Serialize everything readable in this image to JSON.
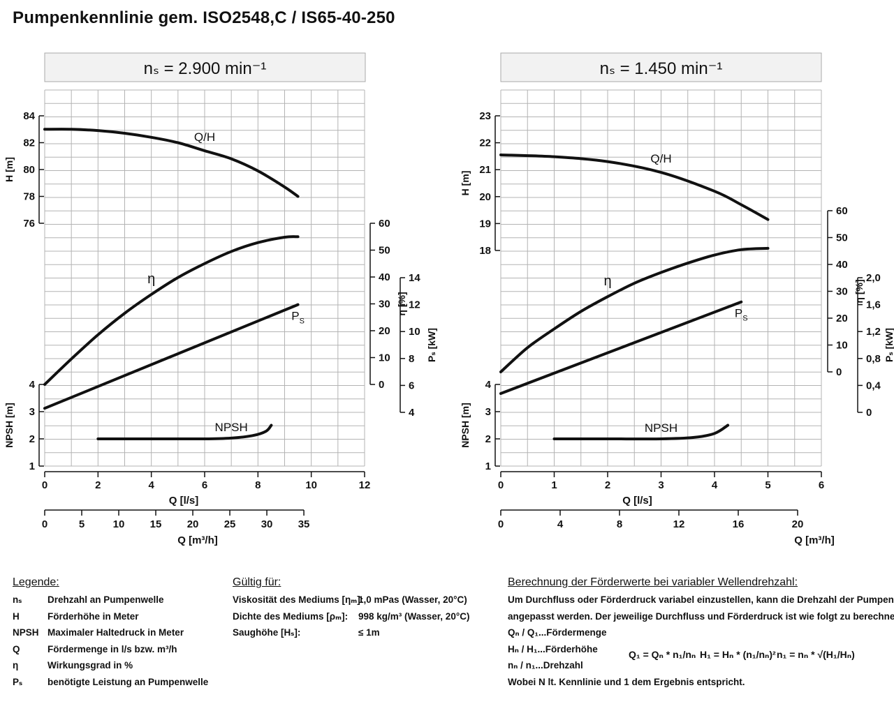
{
  "title": "Pumpenkennlinie gem. ISO2548,C / IS65-40-250",
  "chart_data": [
    {
      "type": "line",
      "panel_title": "nₛ = 2.900 min⁻¹",
      "x_axis": {
        "label": "Q [l/s]",
        "range": [
          0,
          12
        ],
        "ticks": [
          "0",
          "2",
          "4",
          "6",
          "8",
          "10",
          "12"
        ]
      },
      "x2_axis": {
        "label": "Q [m³/h]",
        "range": [
          0,
          43.2
        ],
        "ticks": [
          "0",
          "5",
          "10",
          "15",
          "20",
          "25",
          "30",
          "35"
        ]
      },
      "axes": {
        "H": {
          "label": "H [m]",
          "range": [
            76,
            84
          ],
          "ticks": [
            "76",
            "78",
            "80",
            "82",
            "84"
          ]
        },
        "NPSH": {
          "label": "NPSH [m]",
          "range": [
            1,
            4
          ],
          "ticks": [
            "1",
            "2",
            "3",
            "4"
          ]
        },
        "eta": {
          "label": "η [%]",
          "range": [
            0,
            60
          ],
          "ticks": [
            "0",
            "10",
            "20",
            "30",
            "40",
            "50",
            "60"
          ]
        },
        "Ps": {
          "label": "Pₛ [kW]",
          "range": [
            4,
            14
          ],
          "ticks": [
            "4",
            "6",
            "8",
            "10",
            "12",
            "14"
          ]
        }
      },
      "grid": true,
      "series": [
        {
          "name": "Q/H",
          "axis": "H",
          "x": [
            0,
            1,
            2,
            3,
            4,
            5,
            6,
            7,
            8,
            9,
            9.5
          ],
          "y": [
            83,
            83,
            82.9,
            82.7,
            82.4,
            82.0,
            81.4,
            80.8,
            79.9,
            78.7,
            78.0
          ]
        },
        {
          "name": "η",
          "axis": "eta",
          "x": [
            0,
            1,
            2,
            3,
            4,
            5,
            6,
            7,
            8,
            9,
            9.5
          ],
          "y": [
            0,
            9.5,
            18.5,
            26.5,
            33.5,
            39.8,
            45,
            49.5,
            52.8,
            54.8,
            55
          ]
        },
        {
          "name": "Ps",
          "axis": "Ps",
          "x": [
            0,
            9.5
          ],
          "y": [
            4.3,
            12.0
          ]
        },
        {
          "name": "NPSH",
          "axis": "NPSH",
          "x": [
            2,
            4,
            6,
            7,
            7.8,
            8.3,
            8.5
          ],
          "y": [
            2,
            2,
            2,
            2.03,
            2.12,
            2.28,
            2.5
          ]
        }
      ]
    },
    {
      "type": "line",
      "panel_title": "nₛ = 1.450 min⁻¹",
      "x_axis": {
        "label": "Q [l/s]",
        "range": [
          0,
          6
        ],
        "ticks": [
          "0",
          "1",
          "2",
          "3",
          "4",
          "5",
          "6"
        ]
      },
      "x2_axis": {
        "label": "Q [m³/h]",
        "range": [
          0,
          21.6
        ],
        "ticks": [
          "0",
          "4",
          "8",
          "12",
          "16",
          "20"
        ]
      },
      "axes": {
        "H": {
          "label": "H [m]",
          "range": [
            18,
            23
          ],
          "ticks": [
            "18",
            "19",
            "20",
            "21",
            "22",
            "23"
          ]
        },
        "NPSH": {
          "label": "NPSH [m]",
          "range": [
            1,
            4
          ],
          "ticks": [
            "1",
            "2",
            "3",
            "4"
          ]
        },
        "eta": {
          "label": "η [%]",
          "range": [
            0,
            60
          ],
          "ticks": [
            "0",
            "10",
            "20",
            "30",
            "40",
            "50",
            "60"
          ]
        },
        "Ps": {
          "label": "Pₛ [kW]",
          "range": [
            0,
            2.0
          ],
          "ticks": [
            "0",
            "0,4",
            "0,8",
            "1,2",
            "1,6",
            "2,0"
          ]
        }
      },
      "grid": true,
      "series": [
        {
          "name": "Q/H",
          "axis": "H",
          "x": [
            0,
            1,
            2,
            3,
            4,
            4.5,
            5
          ],
          "y": [
            21.55,
            21.48,
            21.3,
            20.9,
            20.2,
            19.7,
            19.15
          ]
        },
        {
          "name": "η",
          "axis": "eta",
          "x": [
            0,
            0.5,
            1,
            1.5,
            2,
            2.5,
            3,
            3.5,
            4,
            4.5,
            5
          ],
          "y": [
            0,
            9,
            16,
            22.5,
            28,
            33,
            37,
            40.5,
            43.5,
            45.5,
            46
          ]
        },
        {
          "name": "Ps",
          "axis": "Ps",
          "x": [
            0,
            4.5
          ],
          "y": [
            0.28,
            1.64
          ]
        },
        {
          "name": "NPSH",
          "axis": "NPSH",
          "x": [
            1,
            2,
            3,
            3.6,
            4,
            4.25
          ],
          "y": [
            2,
            2,
            2,
            2.05,
            2.2,
            2.5
          ]
        }
      ]
    }
  ],
  "legend": {
    "heading": "Legende:",
    "items": [
      {
        "key": "nₛ",
        "text": "Drehzahl an Pumpenwelle"
      },
      {
        "key": "H",
        "text": "Förderhöhe in Meter"
      },
      {
        "key": "NPSH",
        "text": "Maximaler Haltedruck in Meter"
      },
      {
        "key": "Q",
        "text": "Fördermenge in l/s bzw. m³/h"
      },
      {
        "key": "η",
        "text": "Wirkungsgrad in %"
      },
      {
        "key": "Pₛ",
        "text": "benötigte Leistung an Pumpenwelle"
      }
    ]
  },
  "valid": {
    "heading": "Gültig für:",
    "items": [
      {
        "key": "Viskosität des Mediums [ηₘ]:",
        "value": "1,0 mPas (Wasser, 20°C)"
      },
      {
        "key": "Dichte des Mediums [ρₘ]:",
        "value": "998 kg/m³ (Wasser, 20°C)"
      },
      {
        "key": "Saughöhe [Hₛ]:",
        "value": "≤ 1m"
      }
    ]
  },
  "calc": {
    "heading": "Berechnung der Förderwerte bei variabler Wellendrehzahl:",
    "intro1": "Um Durchfluss oder Förderdruck variabel einzustellen, kann die Drehzahl der Pumpenwelle",
    "intro2": "angepasst werden. Der jeweilige Durchfluss und Förderdruck ist wie folgt zu berechnen:",
    "line_q": "Qₙ / Q₁...Fördermenge",
    "line_h": "Hₙ / H₁...Förderhöhe",
    "line_n": "nₙ / n₁...Drehzahl",
    "outro": "Wobei N lt. Kennlinie und 1 dem Ergebnis entspricht.",
    "f1": "Q₁ = Qₙ * n₁/nₙ",
    "f2": "H₁ = Hₙ * (n₁/nₙ)²",
    "f3": "n₁ = nₙ * √(H₁/Hₙ)"
  }
}
